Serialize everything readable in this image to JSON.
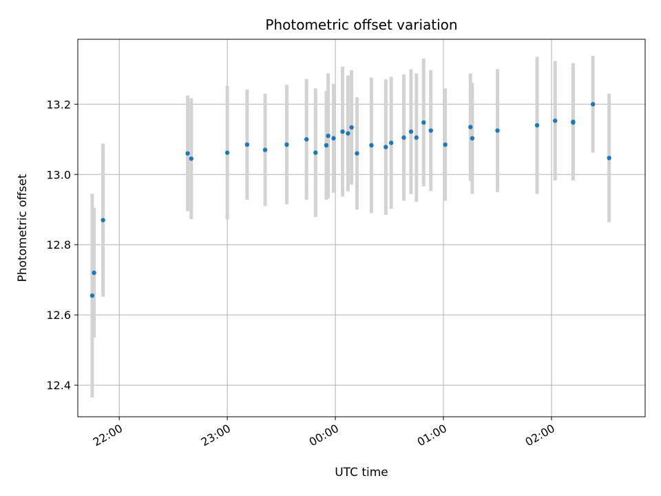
{
  "chart_data": {
    "type": "scatter",
    "title": "Photometric offset variation",
    "xlabel": "UTC time",
    "ylabel": "Photometric offset",
    "x_axis": "time",
    "x_range": [
      "21:37",
      "02:52"
    ],
    "ylim": [
      12.31,
      13.385
    ],
    "xticks": [
      "22:00",
      "23:00",
      "00:00",
      "01:00",
      "02:00"
    ],
    "yticks": [
      12.4,
      12.6,
      12.8,
      13.0,
      13.2
    ],
    "grid": true,
    "point_color": "#1f77b4",
    "errorbar_color": "#d3d3d3",
    "points": [
      {
        "time": "21:45",
        "y": 12.655,
        "err": 0.29
      },
      {
        "time": "21:46",
        "y": 12.72,
        "err": 0.185
      },
      {
        "time": "21:51",
        "y": 12.87,
        "err": 0.218
      },
      {
        "time": "22:38",
        "y": 13.06,
        "err": 0.165
      },
      {
        "time": "22:40",
        "y": 13.045,
        "err": 0.172
      },
      {
        "time": "23:00",
        "y": 13.062,
        "err": 0.19
      },
      {
        "time": "23:11",
        "y": 13.085,
        "err": 0.157
      },
      {
        "time": "23:21",
        "y": 13.07,
        "err": 0.16
      },
      {
        "time": "23:33",
        "y": 13.085,
        "err": 0.17
      },
      {
        "time": "23:44",
        "y": 13.1,
        "err": 0.172
      },
      {
        "time": "23:49",
        "y": 13.062,
        "err": 0.183
      },
      {
        "time": "23:55",
        "y": 13.083,
        "err": 0.155
      },
      {
        "time": "23:56",
        "y": 13.11,
        "err": 0.178
      },
      {
        "time": "23:59",
        "y": 13.103,
        "err": 0.155
      },
      {
        "time": "00:04",
        "y": 13.122,
        "err": 0.185
      },
      {
        "time": "00:07",
        "y": 13.117,
        "err": 0.165
      },
      {
        "time": "00:09",
        "y": 13.134,
        "err": 0.163
      },
      {
        "time": "00:12",
        "y": 13.06,
        "err": 0.16
      },
      {
        "time": "00:20",
        "y": 13.083,
        "err": 0.193
      },
      {
        "time": "00:28",
        "y": 13.078,
        "err": 0.193
      },
      {
        "time": "00:31",
        "y": 13.09,
        "err": 0.188
      },
      {
        "time": "00:38",
        "y": 13.105,
        "err": 0.18
      },
      {
        "time": "00:42",
        "y": 13.122,
        "err": 0.178
      },
      {
        "time": "00:45",
        "y": 13.105,
        "err": 0.183
      },
      {
        "time": "00:49",
        "y": 13.148,
        "err": 0.182
      },
      {
        "time": "00:53",
        "y": 13.125,
        "err": 0.172
      },
      {
        "time": "01:01",
        "y": 13.085,
        "err": 0.16
      },
      {
        "time": "01:15",
        "y": 13.135,
        "err": 0.153
      },
      {
        "time": "01:16",
        "y": 13.103,
        "err": 0.158
      },
      {
        "time": "01:30",
        "y": 13.125,
        "err": 0.175
      },
      {
        "time": "01:52",
        "y": 13.14,
        "err": 0.195
      },
      {
        "time": "02:02",
        "y": 13.153,
        "err": 0.17
      },
      {
        "time": "02:12",
        "y": 13.15,
        "err": 0.167
      },
      {
        "time": "02:12",
        "y": 13.148,
        "err": 0.158
      },
      {
        "time": "02:23",
        "y": 13.2,
        "err": 0.138
      },
      {
        "time": "02:32",
        "y": 13.047,
        "err": 0.183
      }
    ]
  }
}
